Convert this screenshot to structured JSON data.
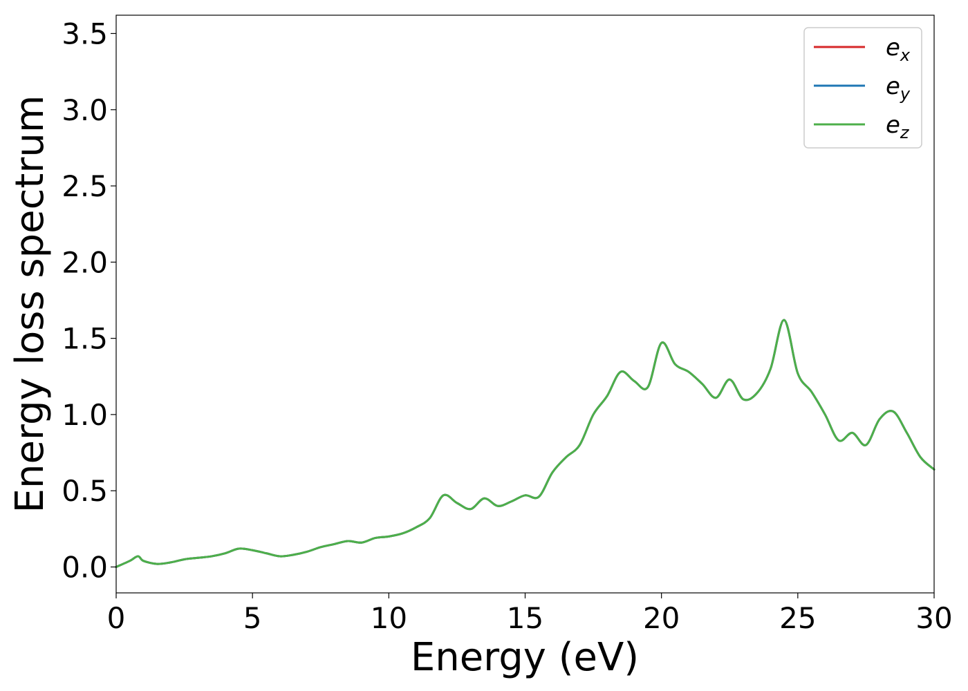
{
  "chart_data": {
    "type": "line",
    "title": "",
    "xlabel": "Energy (eV)",
    "ylabel": "Energy loss spectrum",
    "xlim": [
      0,
      30
    ],
    "ylim": [
      -0.17,
      3.62
    ],
    "xticks": [
      "0",
      "5",
      "10",
      "15",
      "20",
      "25",
      "30"
    ],
    "yticks": [
      "0.0",
      "0.5",
      "1.0",
      "1.5",
      "2.0",
      "2.5",
      "3.0",
      "3.5"
    ],
    "grid": false,
    "legend_position": "top-right",
    "legend": [
      {
        "base": "e",
        "sub": "x",
        "color": "#d62728"
      },
      {
        "base": "e",
        "sub": "y",
        "color": "#1f77b4"
      },
      {
        "base": "e",
        "sub": "z",
        "color": "#4daf4a"
      }
    ],
    "x": [
      0,
      0.5,
      0.8,
      1.0,
      1.5,
      2.0,
      2.5,
      3.0,
      3.5,
      4.0,
      4.5,
      5.0,
      5.5,
      6.0,
      6.5,
      7.0,
      7.5,
      8.0,
      8.5,
      9.0,
      9.5,
      10.0,
      10.5,
      11.0,
      11.5,
      12.0,
      12.5,
      13.0,
      13.5,
      14.0,
      14.5,
      15.0,
      15.5,
      16.0,
      16.5,
      17.0,
      17.5,
      18.0,
      18.5,
      19.0,
      19.5,
      20.0,
      20.5,
      21.0,
      21.5,
      22.0,
      22.5,
      23.0,
      23.5,
      24.0,
      24.5,
      25.0,
      25.5,
      26.0,
      26.5,
      27.0,
      27.5,
      28.0,
      28.5,
      29.0,
      29.5,
      30.0
    ],
    "series": [
      {
        "name": "",
        "color": "#d62728",
        "values": [
          0.0,
          0.04,
          0.07,
          0.04,
          0.02,
          0.03,
          0.05,
          0.06,
          0.07,
          0.09,
          0.12,
          0.11,
          0.09,
          0.07,
          0.08,
          0.1,
          0.13,
          0.15,
          0.17,
          0.16,
          0.19,
          0.2,
          0.22,
          0.26,
          0.32,
          0.47,
          0.42,
          0.38,
          0.45,
          0.4,
          0.43,
          0.47,
          0.46,
          0.62,
          0.72,
          0.8,
          1.0,
          1.12,
          1.28,
          1.22,
          1.18,
          1.47,
          1.33,
          1.28,
          1.2,
          1.11,
          1.23,
          1.1,
          1.14,
          1.3,
          1.62,
          1.27,
          1.15,
          1.0,
          0.83,
          0.88,
          0.8,
          0.97,
          1.02,
          0.88,
          0.72,
          0.64
        ]
      },
      {
        "name": "",
        "color": "#1f77b4",
        "values": [
          0.0,
          0.04,
          0.07,
          0.04,
          0.02,
          0.03,
          0.05,
          0.06,
          0.07,
          0.09,
          0.12,
          0.11,
          0.09,
          0.07,
          0.08,
          0.1,
          0.13,
          0.15,
          0.17,
          0.16,
          0.19,
          0.2,
          0.22,
          0.26,
          0.32,
          0.47,
          0.42,
          0.38,
          0.45,
          0.4,
          0.43,
          0.47,
          0.46,
          0.62,
          0.72,
          0.8,
          1.0,
          1.12,
          1.28,
          1.22,
          1.18,
          1.47,
          1.33,
          1.28,
          1.2,
          1.11,
          1.23,
          1.1,
          1.14,
          1.3,
          1.62,
          1.27,
          1.15,
          1.0,
          0.83,
          0.88,
          0.8,
          0.97,
          1.02,
          0.88,
          0.72,
          0.64
        ]
      },
      {
        "name": "",
        "color": "#4daf4a",
        "values": [
          0.0,
          0.04,
          0.07,
          0.04,
          0.02,
          0.03,
          0.05,
          0.06,
          0.07,
          0.09,
          0.12,
          0.11,
          0.09,
          0.07,
          0.08,
          0.1,
          0.13,
          0.15,
          0.17,
          0.16,
          0.19,
          0.2,
          0.22,
          0.26,
          0.32,
          0.47,
          0.42,
          0.38,
          0.45,
          0.4,
          0.43,
          0.47,
          0.46,
          0.62,
          0.72,
          0.8,
          1.0,
          1.12,
          1.28,
          1.22,
          1.18,
          1.47,
          1.33,
          1.28,
          1.2,
          1.11,
          1.23,
          1.1,
          1.14,
          1.3,
          1.62,
          1.27,
          1.15,
          1.0,
          0.83,
          0.88,
          0.8,
          0.97,
          1.02,
          0.88,
          0.72,
          0.64
        ]
      }
    ]
  }
}
